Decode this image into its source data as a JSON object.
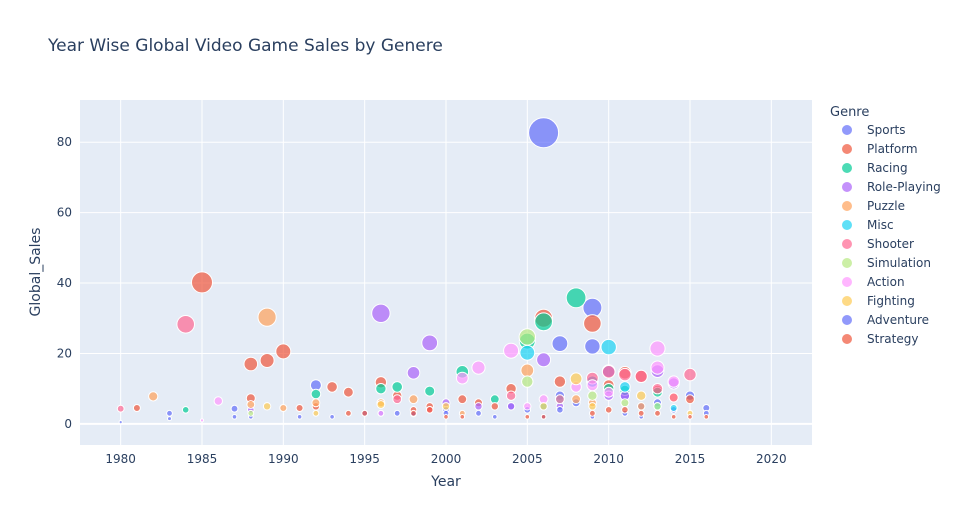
{
  "chart_data": {
    "type": "scatter",
    "title": "Year Wise Global Video Game Sales by Genere",
    "xlabel": "Year",
    "ylabel": "Global_Sales",
    "xlim": [
      1977.5,
      2022.5
    ],
    "ylim": [
      -6,
      92
    ],
    "xticks": [
      1980,
      1985,
      1990,
      1995,
      2000,
      2005,
      2010,
      2015,
      2020
    ],
    "yticks": [
      0,
      20,
      40,
      60,
      80
    ],
    "grid": true,
    "legend": {
      "title": "Genre",
      "placement": "right"
    },
    "series": [
      {
        "name": "Sports",
        "color": "#636efa",
        "points": [
          [
            1980,
            0.5
          ],
          [
            1983,
            3
          ],
          [
            1987,
            4.3
          ],
          [
            1988,
            2
          ],
          [
            1992,
            11
          ],
          [
            1996,
            3
          ],
          [
            1997,
            3
          ],
          [
            1998,
            3
          ],
          [
            2000,
            4
          ],
          [
            2002,
            3
          ],
          [
            2004,
            5
          ],
          [
            2005,
            4
          ],
          [
            2006,
            82.7
          ],
          [
            2007,
            8
          ],
          [
            2008,
            6
          ],
          [
            2009,
            33
          ],
          [
            2009,
            22
          ],
          [
            2010,
            15
          ],
          [
            2011,
            8
          ],
          [
            2012,
            5
          ],
          [
            2013,
            6
          ],
          [
            2014,
            4
          ],
          [
            2015,
            8
          ],
          [
            2016,
            4.5
          ]
        ]
      },
      {
        "name": "Platform",
        "color": "#ef553b",
        "points": [
          [
            1981,
            4.5
          ],
          [
            1985,
            40.2
          ],
          [
            1988,
            17
          ],
          [
            1988,
            7.3
          ],
          [
            1989,
            18
          ],
          [
            1990,
            20.6
          ],
          [
            1992,
            5
          ],
          [
            1993,
            10.5
          ],
          [
            1994,
            9
          ],
          [
            1996,
            11.8
          ],
          [
            1997,
            8
          ],
          [
            1998,
            4
          ],
          [
            1999,
            5
          ],
          [
            2001,
            7
          ],
          [
            2002,
            6
          ],
          [
            2004,
            10
          ],
          [
            2006,
            30
          ],
          [
            2007,
            12
          ],
          [
            2009,
            28.5
          ],
          [
            2010,
            11
          ],
          [
            2011,
            14.5
          ],
          [
            2012,
            13.5
          ],
          [
            2013,
            9.5
          ],
          [
            2015,
            7
          ]
        ]
      },
      {
        "name": "Racing",
        "color": "#00cc96",
        "points": [
          [
            1984,
            4
          ],
          [
            1992,
            8.5
          ],
          [
            1996,
            10
          ],
          [
            1997,
            10.5
          ],
          [
            1999,
            9.3
          ],
          [
            2001,
            14.8
          ],
          [
            2003,
            7
          ],
          [
            2005,
            23.5
          ],
          [
            2006,
            29
          ],
          [
            2008,
            35.8
          ],
          [
            2010,
            10
          ],
          [
            2011,
            9.5
          ],
          [
            2013,
            9
          ]
        ]
      },
      {
        "name": "Role-Playing",
        "color": "#ab63fa",
        "points": [
          [
            1988,
            4
          ],
          [
            1996,
            31.4
          ],
          [
            1998,
            14.5
          ],
          [
            1999,
            23
          ],
          [
            2000,
            6
          ],
          [
            2002,
            5
          ],
          [
            2004,
            5
          ],
          [
            2006,
            18.2
          ],
          [
            2007,
            5
          ],
          [
            2009,
            12
          ],
          [
            2010,
            8
          ],
          [
            2011,
            8
          ],
          [
            2013,
            15
          ],
          [
            2014,
            11.5
          ]
        ]
      },
      {
        "name": "Puzzle",
        "color": "#ffa15a",
        "points": [
          [
            1982,
            7.8
          ],
          [
            1988,
            5.5
          ],
          [
            1989,
            30.3
          ],
          [
            1990,
            4.5
          ],
          [
            1992,
            6
          ],
          [
            1996,
            6
          ],
          [
            1998,
            7
          ],
          [
            2001,
            3
          ],
          [
            2005,
            15.2
          ],
          [
            2008,
            7
          ],
          [
            2009,
            6
          ],
          [
            2012,
            5
          ],
          [
            2014,
            7.5
          ]
        ]
      },
      {
        "name": "Misc",
        "color": "#19d3f3",
        "points": [
          [
            2005,
            20.2
          ],
          [
            2006,
            5
          ],
          [
            2007,
            7
          ],
          [
            2009,
            12
          ],
          [
            2010,
            21.8
          ],
          [
            2011,
            10.5
          ],
          [
            2013,
            5
          ],
          [
            2014,
            4.5
          ]
        ]
      },
      {
        "name": "Shooter",
        "color": "#ff6692",
        "points": [
          [
            1980,
            4.3
          ],
          [
            1984,
            28.3
          ],
          [
            1997,
            7
          ],
          [
            1999,
            4
          ],
          [
            2004,
            8
          ],
          [
            2007,
            7
          ],
          [
            2009,
            13
          ],
          [
            2010,
            14.8
          ],
          [
            2011,
            14
          ],
          [
            2012,
            13.5
          ],
          [
            2013,
            10
          ],
          [
            2014,
            7.5
          ],
          [
            2015,
            14
          ]
        ]
      },
      {
        "name": "Simulation",
        "color": "#b6e880",
        "points": [
          [
            1988,
            3
          ],
          [
            2005,
            24.7
          ],
          [
            2005,
            12
          ],
          [
            2009,
            8
          ],
          [
            2011,
            6
          ],
          [
            2013,
            5
          ]
        ]
      },
      {
        "name": "Action",
        "color": "#ff97ff",
        "points": [
          [
            1985,
            1
          ],
          [
            1986,
            6.5
          ],
          [
            1996,
            3
          ],
          [
            2001,
            13
          ],
          [
            2002,
            16
          ],
          [
            2004,
            20.8
          ],
          [
            2005,
            5
          ],
          [
            2006,
            7
          ],
          [
            2008,
            10.5
          ],
          [
            2009,
            11
          ],
          [
            2010,
            9
          ],
          [
            2013,
            21.4
          ],
          [
            2013,
            16
          ],
          [
            2014,
            12
          ]
        ]
      },
      {
        "name": "Fighting",
        "color": "#fecb52",
        "points": [
          [
            1989,
            5
          ],
          [
            1992,
            3
          ],
          [
            1996,
            5.5
          ],
          [
            2000,
            5
          ],
          [
            2006,
            5
          ],
          [
            2008,
            12.8
          ],
          [
            2009,
            5
          ],
          [
            2012,
            8
          ],
          [
            2015,
            3
          ]
        ]
      },
      {
        "name": "Adventure",
        "color": "#636efa",
        "points": [
          [
            1983,
            1.5
          ],
          [
            1987,
            2
          ],
          [
            1991,
            2
          ],
          [
            1993,
            2
          ],
          [
            1995,
            3
          ],
          [
            1998,
            2.8
          ],
          [
            2000,
            3
          ],
          [
            2003,
            2
          ],
          [
            2006,
            2
          ],
          [
            2007,
            22.8
          ],
          [
            2007,
            4
          ],
          [
            2009,
            2
          ],
          [
            2011,
            3
          ],
          [
            2012,
            2
          ],
          [
            2016,
            3
          ]
        ]
      },
      {
        "name": "Strategy",
        "color": "#ef553b",
        "points": [
          [
            1991,
            4.5
          ],
          [
            1994,
            3
          ],
          [
            1995,
            3
          ],
          [
            1998,
            3
          ],
          [
            1999,
            4
          ],
          [
            2000,
            2
          ],
          [
            2001,
            2
          ],
          [
            2003,
            5
          ],
          [
            2005,
            2
          ],
          [
            2006,
            2
          ],
          [
            2009,
            3
          ],
          [
            2010,
            4
          ],
          [
            2011,
            4
          ],
          [
            2012,
            3
          ],
          [
            2013,
            3
          ],
          [
            2014,
            2
          ],
          [
            2015,
            2
          ],
          [
            2016,
            2
          ]
        ]
      }
    ]
  }
}
